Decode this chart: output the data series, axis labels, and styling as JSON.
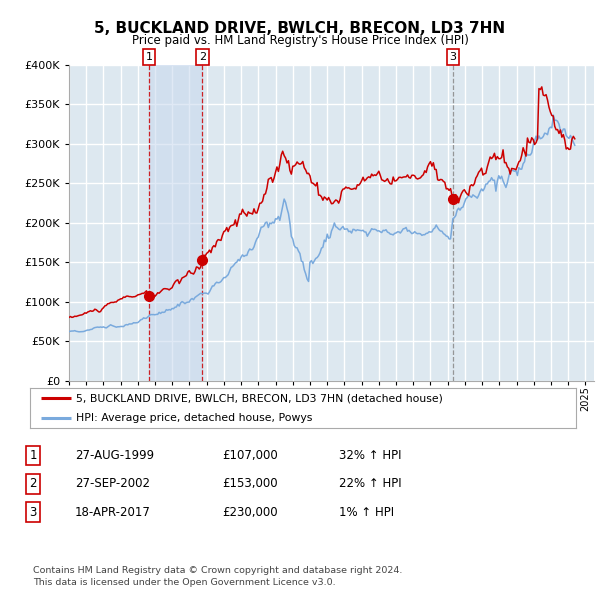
{
  "title": "5, BUCKLAND DRIVE, BWLCH, BRECON, LD3 7HN",
  "subtitle": "Price paid vs. HM Land Registry's House Price Index (HPI)",
  "xlim_start": 1995.0,
  "xlim_end": 2025.5,
  "ylim": [
    0,
    400000
  ],
  "yticks": [
    0,
    50000,
    100000,
    150000,
    200000,
    250000,
    300000,
    350000,
    400000
  ],
  "background_color": "#ffffff",
  "plot_bg_color": "#dde8f0",
  "grid_color": "#ffffff",
  "sale_dates": [
    1999.653,
    2002.747,
    2017.3
  ],
  "sale_prices": [
    107000,
    153000,
    230000
  ],
  "sale_labels": [
    "1",
    "2",
    "3"
  ],
  "legend_label_red": "5, BUCKLAND DRIVE, BWLCH, BRECON, LD3 7HN (detached house)",
  "legend_label_blue": "HPI: Average price, detached house, Powys",
  "table_rows": [
    [
      "1",
      "27-AUG-1999",
      "£107,000",
      "32% ↑ HPI"
    ],
    [
      "2",
      "27-SEP-2002",
      "£153,000",
      "22% ↑ HPI"
    ],
    [
      "3",
      "18-APR-2017",
      "£230,000",
      "1% ↑ HPI"
    ]
  ],
  "footer_text": "Contains HM Land Registry data © Crown copyright and database right 2024.\nThis data is licensed under the Open Government Licence v3.0.",
  "red_color": "#cc0000",
  "blue_color": "#7aaadd",
  "sale_dot_color": "#cc0000",
  "vline_color_red": "#cc0000",
  "vline_color_gray": "#888888",
  "span_color": "#c8d8ee"
}
